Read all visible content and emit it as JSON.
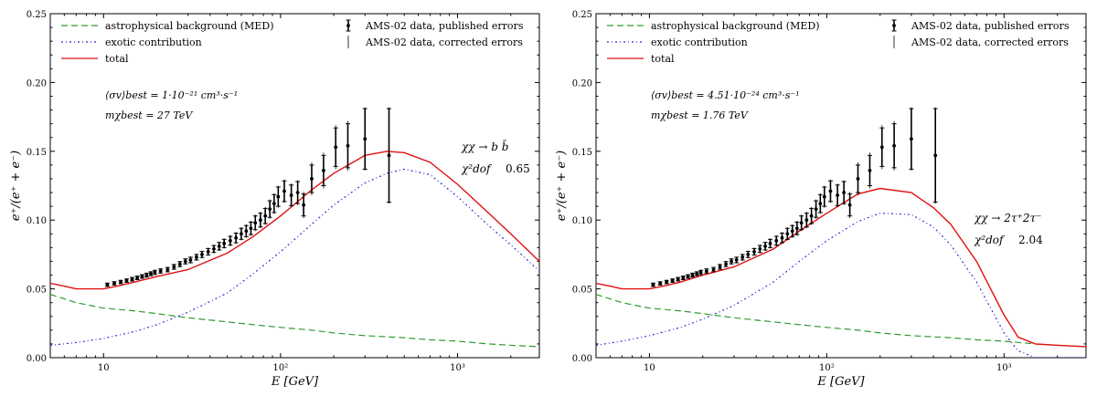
{
  "chart_data": [
    {
      "type": "line",
      "x_scale": "log",
      "xlim": [
        5,
        2900
      ],
      "ylim": [
        0.0,
        0.25
      ],
      "xlabel": "E [GeV]",
      "ylabel": "e⁺/(e⁺ + e⁻)",
      "x_tick_labels": [
        {
          "value": 10,
          "label": "10"
        },
        {
          "value": 100,
          "label": "10²"
        },
        {
          "value": 1000,
          "label": "10³"
        }
      ],
      "y_tick_labels": [
        "0.00",
        "0.05",
        "0.10",
        "0.15",
        "0.20",
        "0.25"
      ],
      "legend_left": [
        "astrophysical background (MED)",
        "exotic contribution",
        "total"
      ],
      "legend_right": [
        "AMS-02 data, published errors",
        "AMS-02 data, corrected errors"
      ],
      "annotation_sigma": "⟨σv⟩best = 1·10⁻²¹ cm³·s⁻¹",
      "annotation_mass": "mχbest = 27 TeV",
      "channel": "χχ → b b̄",
      "chi2_label": "χ²dof",
      "chi2_value": "0.65",
      "series": [
        {
          "name": "astrophysical background (MED)",
          "color": "#2e9a2e",
          "style": "dashed",
          "x": [
            5,
            7,
            10,
            15,
            20,
            30,
            50,
            70,
            100,
            150,
            200,
            300,
            500,
            700,
            1000,
            1500,
            2000,
            2900
          ],
          "y": [
            0.046,
            0.04,
            0.036,
            0.034,
            0.032,
            0.029,
            0.026,
            0.024,
            0.022,
            0.02,
            0.018,
            0.016,
            0.0145,
            0.013,
            0.012,
            0.01,
            0.009,
            0.008
          ]
        },
        {
          "name": "exotic contribution",
          "color": "#2b2bd6",
          "style": "dashdot",
          "x": [
            5,
            7,
            10,
            15,
            20,
            30,
            50,
            70,
            100,
            150,
            200,
            300,
            400,
            500,
            700,
            1000,
            1500,
            2000,
            2900
          ],
          "y": [
            0.009,
            0.011,
            0.014,
            0.019,
            0.024,
            0.033,
            0.047,
            0.061,
            0.077,
            0.097,
            0.111,
            0.127,
            0.134,
            0.137,
            0.133,
            0.117,
            0.096,
            0.082,
            0.063
          ]
        },
        {
          "name": "total",
          "color": "#e01010",
          "style": "solid",
          "x": [
            5,
            6,
            7,
            8,
            10,
            12,
            15,
            20,
            30,
            50,
            70,
            100,
            150,
            200,
            300,
            400,
            500,
            700,
            1000,
            1500,
            2000,
            2900
          ],
          "y": [
            0.054,
            0.052,
            0.05,
            0.05,
            0.05,
            0.052,
            0.055,
            0.059,
            0.064,
            0.076,
            0.088,
            0.103,
            0.122,
            0.134,
            0.147,
            0.15,
            0.149,
            0.142,
            0.126,
            0.105,
            0.09,
            0.07
          ]
        }
      ],
      "data_points": {
        "x": [
          10.5,
          11.5,
          12.5,
          13.5,
          14.5,
          15.5,
          16.5,
          17.5,
          18.5,
          19.5,
          21,
          23,
          25,
          27,
          29,
          31,
          33.5,
          36,
          39,
          42,
          45,
          48,
          52,
          56,
          60,
          64,
          68,
          72,
          77,
          82,
          87,
          92,
          97,
          105,
          115,
          125,
          135,
          150,
          175,
          205,
          240,
          300,
          410
        ],
        "y": [
          0.053,
          0.054,
          0.055,
          0.056,
          0.057,
          0.058,
          0.059,
          0.06,
          0.061,
          0.062,
          0.063,
          0.064,
          0.066,
          0.068,
          0.07,
          0.071,
          0.073,
          0.075,
          0.077,
          0.079,
          0.081,
          0.083,
          0.085,
          0.087,
          0.09,
          0.092,
          0.094,
          0.098,
          0.1,
          0.103,
          0.108,
          0.112,
          0.117,
          0.121,
          0.118,
          0.12,
          0.111,
          0.13,
          0.136,
          0.153,
          0.154,
          0.159,
          0.147
        ],
        "err_published": [
          0.0012,
          0.0012,
          0.0012,
          0.0012,
          0.0013,
          0.0013,
          0.0013,
          0.0014,
          0.0014,
          0.0015,
          0.0015,
          0.0016,
          0.0017,
          0.0018,
          0.0018,
          0.002,
          0.002,
          0.0022,
          0.0023,
          0.0025,
          0.0027,
          0.003,
          0.0032,
          0.0035,
          0.004,
          0.004,
          0.0045,
          0.005,
          0.005,
          0.0055,
          0.006,
          0.0065,
          0.007,
          0.0075,
          0.0075,
          0.008,
          0.008,
          0.01,
          0.011,
          0.014,
          0.016,
          0.022,
          0.034
        ],
        "err_corrected": [
          0.0015,
          0.0015,
          0.0015,
          0.0016,
          0.0016,
          0.0017,
          0.0017,
          0.0018,
          0.0018,
          0.0019,
          0.002,
          0.002,
          0.0022,
          0.0023,
          0.0024,
          0.0025,
          0.0026,
          0.0028,
          0.003,
          0.0032,
          0.0034,
          0.0037,
          0.004,
          0.0043,
          0.0048,
          0.005,
          0.0055,
          0.006,
          0.006,
          0.0065,
          0.007,
          0.0075,
          0.008,
          0.0085,
          0.0085,
          0.009,
          0.0095,
          0.012,
          0.013,
          0.016,
          0.018,
          0.023,
          0.035
        ]
      }
    },
    {
      "type": "line",
      "x_scale": "log",
      "xlim": [
        5,
        2900
      ],
      "ylim": [
        0.0,
        0.25
      ],
      "xlabel": "E [GeV]",
      "ylabel": "e⁺/(e⁺ + e⁻)",
      "x_tick_labels": [
        {
          "value": 10,
          "label": "10"
        },
        {
          "value": 100,
          "label": "10²"
        },
        {
          "value": 1000,
          "label": "10³"
        }
      ],
      "y_tick_labels": [
        "0.00",
        "0.05",
        "0.10",
        "0.15",
        "0.20",
        "0.25"
      ],
      "legend_left": [
        "astrophysical background (MED)",
        "exotic contribution",
        "total"
      ],
      "legend_right": [
        "AMS-02 data, published errors",
        "AMS-02 data, corrected errors"
      ],
      "annotation_sigma": "⟨σv⟩best = 4.51·10⁻²⁴ cm³·s⁻¹",
      "annotation_mass": "mχbest = 1.76 TeV",
      "channel": "χχ → 2τ⁺2τ⁻",
      "chi2_label": "χ²dof",
      "chi2_value": "2.04",
      "series": [
        {
          "name": "astrophysical background (MED)",
          "color": "#2e9a2e",
          "style": "dashed",
          "x": [
            5,
            7,
            10,
            15,
            20,
            30,
            50,
            70,
            100,
            150,
            200,
            300,
            500,
            700,
            1000,
            1500,
            2000,
            2900
          ],
          "y": [
            0.046,
            0.04,
            0.036,
            0.034,
            0.032,
            0.029,
            0.026,
            0.024,
            0.022,
            0.02,
            0.018,
            0.016,
            0.0145,
            0.013,
            0.012,
            0.01,
            0.009,
            0.008
          ]
        },
        {
          "name": "exotic contribution",
          "color": "#2b2bd6",
          "style": "dashdot",
          "x": [
            5,
            7,
            10,
            15,
            20,
            30,
            50,
            70,
            100,
            150,
            200,
            300,
            400,
            500,
            700,
            1000,
            1200,
            1500,
            2000,
            2900
          ],
          "y": [
            0.009,
            0.012,
            0.016,
            0.022,
            0.028,
            0.038,
            0.055,
            0.07,
            0.085,
            0.099,
            0.105,
            0.104,
            0.095,
            0.082,
            0.055,
            0.018,
            0.005,
            0.0,
            0.0,
            0.0
          ]
        },
        {
          "name": "total",
          "color": "#e01010",
          "style": "solid",
          "x": [
            5,
            6,
            7,
            8,
            10,
            12,
            15,
            20,
            30,
            50,
            70,
            100,
            150,
            200,
            300,
            400,
            500,
            700,
            1000,
            1200,
            1500,
            2000,
            2900
          ],
          "y": [
            0.054,
            0.052,
            0.05,
            0.05,
            0.05,
            0.052,
            0.055,
            0.06,
            0.066,
            0.079,
            0.092,
            0.105,
            0.119,
            0.123,
            0.12,
            0.109,
            0.097,
            0.07,
            0.031,
            0.015,
            0.01,
            0.009,
            0.008
          ]
        }
      ],
      "data_points": {
        "x": [
          10.5,
          11.5,
          12.5,
          13.5,
          14.5,
          15.5,
          16.5,
          17.5,
          18.5,
          19.5,
          21,
          23,
          25,
          27,
          29,
          31,
          33.5,
          36,
          39,
          42,
          45,
          48,
          52,
          56,
          60,
          64,
          68,
          72,
          77,
          82,
          87,
          92,
          97,
          105,
          115,
          125,
          135,
          150,
          175,
          205,
          240,
          300,
          410
        ],
        "y": [
          0.053,
          0.054,
          0.055,
          0.056,
          0.057,
          0.058,
          0.059,
          0.06,
          0.061,
          0.062,
          0.063,
          0.064,
          0.066,
          0.068,
          0.07,
          0.071,
          0.073,
          0.075,
          0.077,
          0.079,
          0.081,
          0.083,
          0.085,
          0.087,
          0.09,
          0.092,
          0.094,
          0.098,
          0.1,
          0.103,
          0.108,
          0.112,
          0.117,
          0.121,
          0.118,
          0.12,
          0.111,
          0.13,
          0.136,
          0.153,
          0.154,
          0.159,
          0.147
        ],
        "err_published": [
          0.0012,
          0.0012,
          0.0012,
          0.0012,
          0.0013,
          0.0013,
          0.0013,
          0.0014,
          0.0014,
          0.0015,
          0.0015,
          0.0016,
          0.0017,
          0.0018,
          0.0018,
          0.002,
          0.002,
          0.0022,
          0.0023,
          0.0025,
          0.0027,
          0.003,
          0.0032,
          0.0035,
          0.004,
          0.004,
          0.0045,
          0.005,
          0.005,
          0.0055,
          0.006,
          0.0065,
          0.007,
          0.0075,
          0.0075,
          0.008,
          0.008,
          0.01,
          0.011,
          0.014,
          0.016,
          0.022,
          0.034
        ],
        "err_corrected": [
          0.0015,
          0.0015,
          0.0015,
          0.0016,
          0.0016,
          0.0017,
          0.0017,
          0.0018,
          0.0018,
          0.0019,
          0.002,
          0.002,
          0.0022,
          0.0023,
          0.0024,
          0.0025,
          0.0026,
          0.0028,
          0.003,
          0.0032,
          0.0034,
          0.0037,
          0.004,
          0.0043,
          0.0048,
          0.005,
          0.0055,
          0.006,
          0.006,
          0.0065,
          0.007,
          0.0075,
          0.008,
          0.0085,
          0.0085,
          0.009,
          0.0095,
          0.012,
          0.013,
          0.016,
          0.018,
          0.023,
          0.035
        ]
      }
    }
  ]
}
